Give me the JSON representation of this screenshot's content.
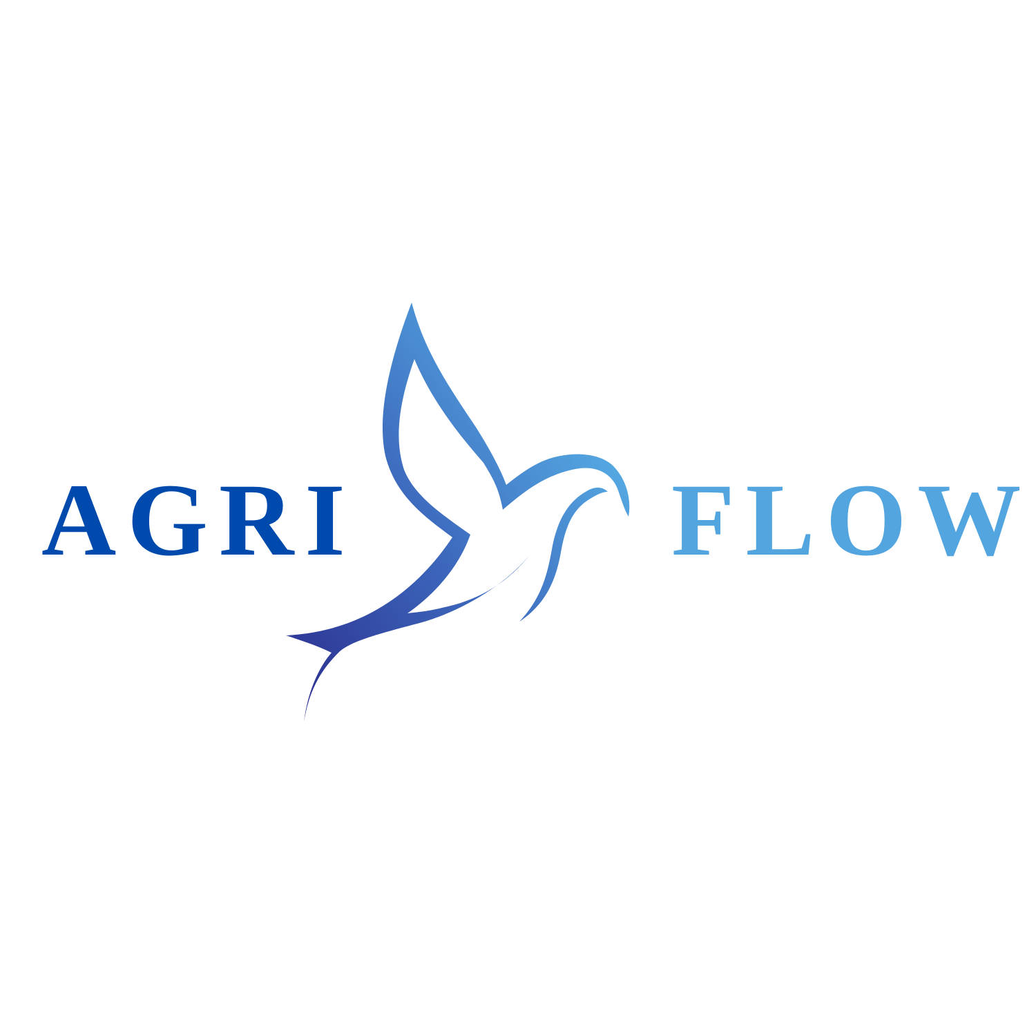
{
  "logo": {
    "word_left": "AGRI",
    "word_right": "FLOW",
    "colors": {
      "background": "#ffffff",
      "word_left": "#004aad",
      "word_right": "#53a5e0",
      "bird_gradient_start": "#2b2e8e",
      "bird_gradient_mid": "#3c66bb",
      "bird_gradient_end": "#55aae3"
    },
    "mark_icon": "dove-icon"
  }
}
